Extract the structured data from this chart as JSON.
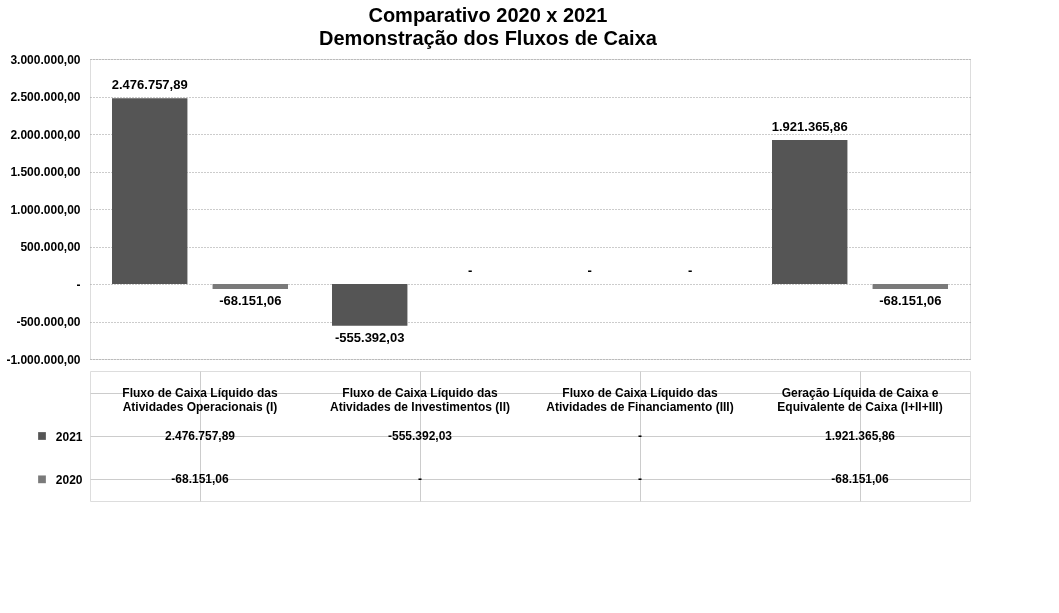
{
  "chart_data": {
    "type": "bar",
    "title": "Comparativo 2020 x 2021",
    "subtitle": "Demonstração dos Fluxos de Caixa",
    "categories": [
      "Fluxo de Caixa Líquido das Atividades Operacionais (I)",
      "Fluxo de Caixa Líquido das Atividades de Investimentos (II)",
      "Fluxo de Caixa Líquido das Atividades de Financiamento (III)",
      "Geração Líquida de Caixa e Equivalente de Caixa (I+II+III)"
    ],
    "series": [
      {
        "name": "2021",
        "color": "#555555",
        "values": [
          2476757.89,
          -555392.03,
          0,
          1921365.86
        ],
        "value_labels": [
          "2.476.757,89",
          "-555.392,03",
          "-",
          "1.921.365,86"
        ]
      },
      {
        "name": "2020",
        "color": "#7a7a7a",
        "values": [
          -68151.06,
          0,
          0,
          -68151.06
        ],
        "value_labels": [
          "-68.151,06",
          "-",
          "-",
          "-68.151,06"
        ]
      }
    ],
    "ylim": [
      -1000000,
      3000000
    ],
    "yticks": [
      {
        "value": -1000000,
        "label": "-1.000.000,00"
      },
      {
        "value": -500000,
        "label": "-500.000,00"
      },
      {
        "value": 0,
        "label": "-"
      },
      {
        "value": 500000,
        "label": "500.000,00"
      },
      {
        "value": 1000000,
        "label": "1.000.000,00"
      },
      {
        "value": 1500000,
        "label": "1.500.000,00"
      },
      {
        "value": 2000000,
        "label": "2.000.000,00"
      },
      {
        "value": 2500000,
        "label": "2.500.000,00"
      },
      {
        "value": 3000000,
        "label": "3.000.000,00"
      }
    ],
    "grid": "y",
    "legend": "bottom left"
  }
}
